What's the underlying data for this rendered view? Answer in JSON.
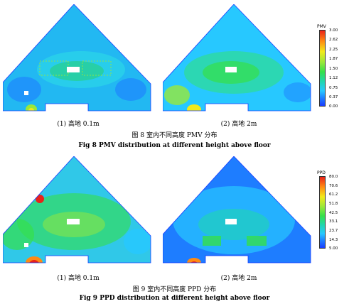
{
  "figure8": {
    "sub_a": "(1) 高地 0.1m",
    "sub_b": "(2) 高地 2m",
    "caption_cn": "图 8  室内不同高度 PMV 分布",
    "caption_en": "Fig 8   PMV distribution at different height above floor",
    "colorbar": {
      "title": "PMV",
      "labels": [
        "3.00",
        "2.62",
        "2.25",
        "1.87",
        "1.50",
        "1.12",
        "0.75",
        "0.37",
        "0.00"
      ]
    }
  },
  "figure9": {
    "sub_a": "(1) 高地 0.1m",
    "sub_b": "(2) 高地 2m",
    "caption_cn": "图 9  室内不同高度 PPD 分布",
    "caption_en": "Fig 9   PPD distribution at different height above floor",
    "colorbar": {
      "title": "PPD",
      "labels": [
        "80.0",
        "70.6",
        "61.2",
        "51.8",
        "42.5",
        "33.1",
        "23.7",
        "14.3",
        "5.00"
      ]
    }
  },
  "colors": {
    "deep_blue": "#1a3cff",
    "blue": "#1e7dff",
    "cyan": "#27c8ff",
    "teal": "#20d6b0",
    "green": "#34e04a",
    "light_green": "#9ae83a",
    "yellow": "#f2ea1a",
    "orange": "#ff8a12",
    "red": "#e8221a"
  }
}
